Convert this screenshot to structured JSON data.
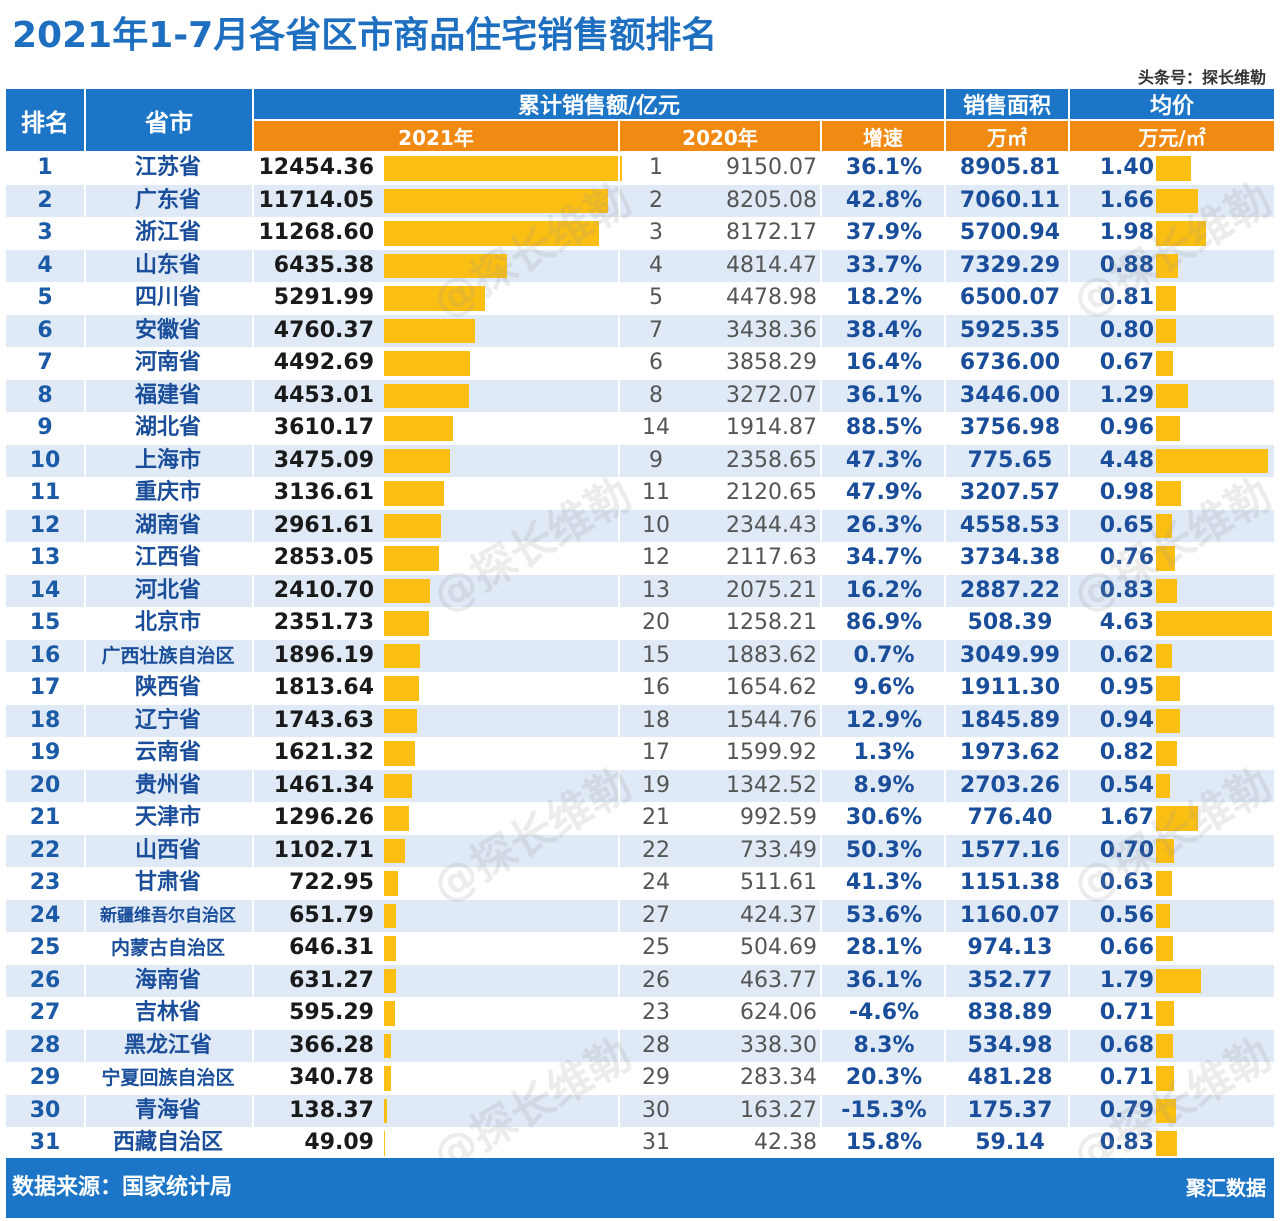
{
  "title": "2021年1-7月各省区市商品住宅销售额排名",
  "source_tag": "头条号：探长维勒",
  "footer": {
    "source": "数据来源：国家统计局",
    "brand": "聚汇数据"
  },
  "watermark": "@探长维勒",
  "colors": {
    "header_blue": "#1c75c6",
    "header_orange": "#f08a12",
    "bar": "#fbbf13",
    "row_alt": "#dfeaf6"
  },
  "headers": {
    "rank": "排名",
    "province": "省市",
    "sales_group": "累计销售额/亿元",
    "y2021": "2021年",
    "y2020": "2020年",
    "growth": "增速",
    "area": "销售面积",
    "area_unit": "万㎡",
    "price": "均价",
    "price_unit": "万元/㎡"
  },
  "chart_data": {
    "type": "table",
    "columns": [
      "排名",
      "省市",
      "2021年",
      "2020年排名",
      "2020年",
      "增速",
      "销售面积(万㎡)",
      "均价(万元/㎡)"
    ],
    "bar_columns": [
      "2021年",
      "均价"
    ],
    "rows": [
      {
        "rank": "1",
        "province": "江苏省",
        "v2021": "12454.36",
        "rank2020": "1",
        "v2020": "9150.07",
        "growth": "36.1%",
        "area": "8905.81",
        "price": "1.40"
      },
      {
        "rank": "2",
        "province": "广东省",
        "v2021": "11714.05",
        "rank2020": "2",
        "v2020": "8205.08",
        "growth": "42.8%",
        "area": "7060.11",
        "price": "1.66"
      },
      {
        "rank": "3",
        "province": "浙江省",
        "v2021": "11268.60",
        "rank2020": "3",
        "v2020": "8172.17",
        "growth": "37.9%",
        "area": "5700.94",
        "price": "1.98"
      },
      {
        "rank": "4",
        "province": "山东省",
        "v2021": "6435.38",
        "rank2020": "4",
        "v2020": "4814.47",
        "growth": "33.7%",
        "area": "7329.29",
        "price": "0.88"
      },
      {
        "rank": "5",
        "province": "四川省",
        "v2021": "5291.99",
        "rank2020": "5",
        "v2020": "4478.98",
        "growth": "18.2%",
        "area": "6500.07",
        "price": "0.81"
      },
      {
        "rank": "6",
        "province": "安徽省",
        "v2021": "4760.37",
        "rank2020": "7",
        "v2020": "3438.36",
        "growth": "38.4%",
        "area": "5925.35",
        "price": "0.80"
      },
      {
        "rank": "7",
        "province": "河南省",
        "v2021": "4492.69",
        "rank2020": "6",
        "v2020": "3858.29",
        "growth": "16.4%",
        "area": "6736.00",
        "price": "0.67"
      },
      {
        "rank": "8",
        "province": "福建省",
        "v2021": "4453.01",
        "rank2020": "8",
        "v2020": "3272.07",
        "growth": "36.1%",
        "area": "3446.00",
        "price": "1.29"
      },
      {
        "rank": "9",
        "province": "湖北省",
        "v2021": "3610.17",
        "rank2020": "14",
        "v2020": "1914.87",
        "growth": "88.5%",
        "area": "3756.98",
        "price": "0.96"
      },
      {
        "rank": "10",
        "province": "上海市",
        "v2021": "3475.09",
        "rank2020": "9",
        "v2020": "2358.65",
        "growth": "47.3%",
        "area": "775.65",
        "price": "4.48"
      },
      {
        "rank": "11",
        "province": "重庆市",
        "v2021": "3136.61",
        "rank2020": "11",
        "v2020": "2120.65",
        "growth": "47.9%",
        "area": "3207.57",
        "price": "0.98"
      },
      {
        "rank": "12",
        "province": "湖南省",
        "v2021": "2961.61",
        "rank2020": "10",
        "v2020": "2344.43",
        "growth": "26.3%",
        "area": "4558.53",
        "price": "0.65"
      },
      {
        "rank": "13",
        "province": "江西省",
        "v2021": "2853.05",
        "rank2020": "12",
        "v2020": "2117.63",
        "growth": "34.7%",
        "area": "3734.38",
        "price": "0.76"
      },
      {
        "rank": "14",
        "province": "河北省",
        "v2021": "2410.70",
        "rank2020": "13",
        "v2020": "2075.21",
        "growth": "16.2%",
        "area": "2887.22",
        "price": "0.83"
      },
      {
        "rank": "15",
        "province": "北京市",
        "v2021": "2351.73",
        "rank2020": "20",
        "v2020": "1258.21",
        "growth": "86.9%",
        "area": "508.39",
        "price": "4.63"
      },
      {
        "rank": "16",
        "province": "广西壮族自治区",
        "v2021": "1896.19",
        "rank2020": "15",
        "v2020": "1883.62",
        "growth": "0.7%",
        "area": "3049.99",
        "price": "0.62"
      },
      {
        "rank": "17",
        "province": "陕西省",
        "v2021": "1813.64",
        "rank2020": "16",
        "v2020": "1654.62",
        "growth": "9.6%",
        "area": "1911.30",
        "price": "0.95"
      },
      {
        "rank": "18",
        "province": "辽宁省",
        "v2021": "1743.63",
        "rank2020": "18",
        "v2020": "1544.76",
        "growth": "12.9%",
        "area": "1845.89",
        "price": "0.94"
      },
      {
        "rank": "19",
        "province": "云南省",
        "v2021": "1621.32",
        "rank2020": "17",
        "v2020": "1599.92",
        "growth": "1.3%",
        "area": "1973.62",
        "price": "0.82"
      },
      {
        "rank": "20",
        "province": "贵州省",
        "v2021": "1461.34",
        "rank2020": "19",
        "v2020": "1342.52",
        "growth": "8.9%",
        "area": "2703.26",
        "price": "0.54"
      },
      {
        "rank": "21",
        "province": "天津市",
        "v2021": "1296.26",
        "rank2020": "21",
        "v2020": "992.59",
        "growth": "30.6%",
        "area": "776.40",
        "price": "1.67"
      },
      {
        "rank": "22",
        "province": "山西省",
        "v2021": "1102.71",
        "rank2020": "22",
        "v2020": "733.49",
        "growth": "50.3%",
        "area": "1577.16",
        "price": "0.70"
      },
      {
        "rank": "23",
        "province": "甘肃省",
        "v2021": "722.95",
        "rank2020": "24",
        "v2020": "511.61",
        "growth": "41.3%",
        "area": "1151.38",
        "price": "0.63"
      },
      {
        "rank": "24",
        "province": "新疆维吾尔自治区",
        "v2021": "651.79",
        "rank2020": "27",
        "v2020": "424.37",
        "growth": "53.6%",
        "area": "1160.07",
        "price": "0.56"
      },
      {
        "rank": "25",
        "province": "内蒙古自治区",
        "v2021": "646.31",
        "rank2020": "25",
        "v2020": "504.69",
        "growth": "28.1%",
        "area": "974.13",
        "price": "0.66"
      },
      {
        "rank": "26",
        "province": "海南省",
        "v2021": "631.27",
        "rank2020": "26",
        "v2020": "463.77",
        "growth": "36.1%",
        "area": "352.77",
        "price": "1.79"
      },
      {
        "rank": "27",
        "province": "吉林省",
        "v2021": "595.29",
        "rank2020": "23",
        "v2020": "624.06",
        "growth": "-4.6%",
        "area": "838.89",
        "price": "0.71"
      },
      {
        "rank": "28",
        "province": "黑龙江省",
        "v2021": "366.28",
        "rank2020": "28",
        "v2020": "338.30",
        "growth": "8.3%",
        "area": "534.98",
        "price": "0.68"
      },
      {
        "rank": "29",
        "province": "宁夏回族自治区",
        "v2021": "340.78",
        "rank2020": "29",
        "v2020": "283.34",
        "growth": "20.3%",
        "area": "481.28",
        "price": "0.71"
      },
      {
        "rank": "30",
        "province": "青海省",
        "v2021": "138.37",
        "rank2020": "30",
        "v2020": "163.27",
        "growth": "-15.3%",
        "area": "175.37",
        "price": "0.79"
      },
      {
        "rank": "31",
        "province": "西藏自治区",
        "v2021": "49.09",
        "rank2020": "31",
        "v2020": "42.38",
        "growth": "15.8%",
        "area": "59.14",
        "price": "0.83"
      }
    ]
  }
}
